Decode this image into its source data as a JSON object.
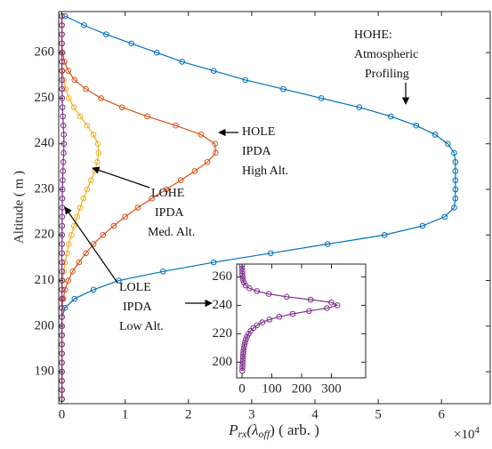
{
  "chart_data": [
    {
      "type": "line",
      "y_label": "Altitude ( m )",
      "x_label_parts": [
        "P",
        "rx",
        "(λ",
        "off",
        ")  ( arb. )"
      ],
      "x_exponent_parts": [
        "×10",
        "4"
      ],
      "y": [
        184,
        186,
        188,
        190,
        192,
        194,
        196,
        198,
        200,
        202,
        204,
        206,
        208,
        210,
        212,
        214,
        216,
        218,
        220,
        222,
        224,
        226,
        228,
        230,
        232,
        234,
        236,
        238,
        240,
        242,
        244,
        246,
        248,
        250,
        252,
        254,
        256,
        258,
        260,
        262,
        264,
        266,
        268
      ],
      "series": [
        {
          "name": "HOHE",
          "color": "#0072BD",
          "values": [
            0,
            0,
            0,
            0,
            0,
            0,
            0,
            0,
            0,
            0,
            0.05,
            0.2,
            0.5,
            0.9,
            1.6,
            2.4,
            3.3,
            4.2,
            5.1,
            5.7,
            6.05,
            6.2,
            6.22,
            6.22,
            6.22,
            6.22,
            6.22,
            6.2,
            6.1,
            5.9,
            5.6,
            5.2,
            4.7,
            4.1,
            3.5,
            2.9,
            2.4,
            1.9,
            1.5,
            1.1,
            0.7,
            0.35,
            0.05
          ]
        },
        {
          "name": "HOLE",
          "color": "#D95319",
          "values": [
            0,
            0,
            0,
            0,
            0,
            0,
            0,
            0,
            0,
            0,
            0,
            0.02,
            0.05,
            0.1,
            0.17,
            0.27,
            0.38,
            0.5,
            0.65,
            0.82,
            1.0,
            1.2,
            1.42,
            1.65,
            1.88,
            2.1,
            2.3,
            2.43,
            2.42,
            2.2,
            1.8,
            1.35,
            0.95,
            0.62,
            0.38,
            0.2,
            0.1,
            0.04,
            0.01,
            0,
            0,
            0,
            0
          ]
        },
        {
          "name": "LOHE",
          "color": "#EDB120",
          "values": [
            0,
            0,
            0,
            0,
            0,
            0,
            0,
            0,
            0,
            0,
            0,
            0,
            0,
            0.01,
            0.03,
            0.05,
            0.08,
            0.11,
            0.15,
            0.19,
            0.24,
            0.29,
            0.34,
            0.4,
            0.46,
            0.52,
            0.56,
            0.58,
            0.57,
            0.5,
            0.4,
            0.29,
            0.19,
            0.11,
            0.06,
            0.03,
            0.01,
            0,
            0,
            0,
            0,
            0,
            0
          ]
        },
        {
          "name": "LOLE",
          "color": "#7E2F8E",
          "values": [
            0.0001,
            0.0001,
            0.0001,
            0.0001,
            0.0001,
            0.0001,
            0.0001,
            0.0002,
            0.0002,
            0.0003,
            0.0003,
            0.0004,
            0.0005,
            0.0006,
            0.0008,
            0.001,
            0.0013,
            0.0017,
            0.0022,
            0.0029,
            0.0038,
            0.005,
            0.0068,
            0.0092,
            0.0125,
            0.017,
            0.0225,
            0.0285,
            0.032,
            0.03,
            0.023,
            0.015,
            0.009,
            0.005,
            0.0025,
            0.0012,
            0.0006,
            0.0003,
            0.0002,
            0.0001,
            0.0001,
            0,
            0
          ]
        }
      ],
      "xlim": [
        -0.05,
        6.77
      ],
      "xticks": [
        0,
        1,
        2,
        3,
        4,
        5,
        6
      ],
      "ylim": [
        183,
        269
      ],
      "yticks": [
        190,
        200,
        210,
        220,
        230,
        240,
        250,
        260
      ],
      "grid": false,
      "annotations": [
        {
          "lines": [
            "HOHE:",
            "Atmospheric",
            "Profiling"
          ]
        },
        {
          "lines": [
            "HOLE",
            "IPDA",
            "High Alt."
          ]
        },
        {
          "lines": [
            "LOHE",
            "IPDA",
            "Med. Alt."
          ]
        },
        {
          "lines": [
            "LOLE",
            "IPDA",
            "Low Alt."
          ]
        }
      ]
    },
    {
      "type": "line",
      "y": [
        194,
        196,
        198,
        200,
        202,
        204,
        206,
        208,
        210,
        212,
        214,
        216,
        218,
        220,
        222,
        224,
        226,
        228,
        230,
        232,
        234,
        236,
        238,
        240,
        242,
        244,
        246,
        248,
        250,
        252,
        254,
        256,
        258,
        260,
        262,
        264,
        266,
        268
      ],
      "series": [
        {
          "name": "LOLE",
          "color": "#7E2F8E",
          "values": [
            1,
            1,
            2,
            2,
            3,
            3,
            4,
            5,
            6,
            8,
            10,
            13,
            17,
            22,
            29,
            38,
            50,
            68,
            92,
            125,
            170,
            225,
            285,
            320,
            300,
            230,
            150,
            90,
            50,
            25,
            12,
            6,
            3,
            2,
            1,
            1,
            0,
            0
          ]
        }
      ],
      "xlim": [
        -18,
        415
      ],
      "xticks": [
        0,
        100,
        200,
        300
      ],
      "ylim": [
        189,
        269
      ],
      "yticks": [
        200,
        220,
        240,
        260
      ],
      "grid": false
    }
  ]
}
